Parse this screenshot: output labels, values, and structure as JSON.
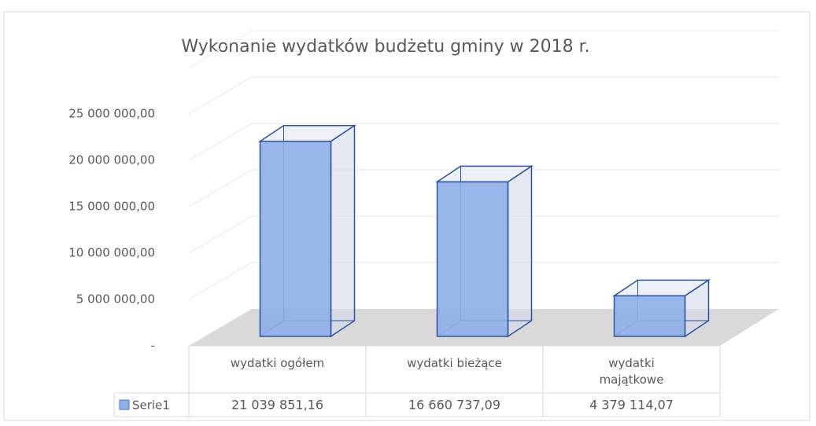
{
  "chart_data": {
    "type": "bar",
    "title": "Wykonanie wydatków budżetu gminy w 2018 r.",
    "categories": [
      "wydatki ogółem",
      "wydatki bieżące",
      "wydatki majątkowe"
    ],
    "series": [
      {
        "name": "Serie1",
        "color": "#8eaee8",
        "values": [
          21039851.16,
          16660737.09,
          4379114.07
        ],
        "value_labels": [
          "21 039 851,16",
          "16 660 737,09",
          "4 379 114,07"
        ]
      }
    ],
    "ylim": [
      0,
      30000000
    ],
    "yticks": [
      {
        "value": 0,
        "label": "-"
      },
      {
        "value": 5000000,
        "label": "5 000 000,00"
      },
      {
        "value": 10000000,
        "label": "10 000 000,00"
      },
      {
        "value": 15000000,
        "label": "15 000 000,00"
      },
      {
        "value": 20000000,
        "label": "20 000 000,00"
      },
      {
        "value": 25000000,
        "label": "25 000 000,00"
      }
    ],
    "grid": true
  }
}
